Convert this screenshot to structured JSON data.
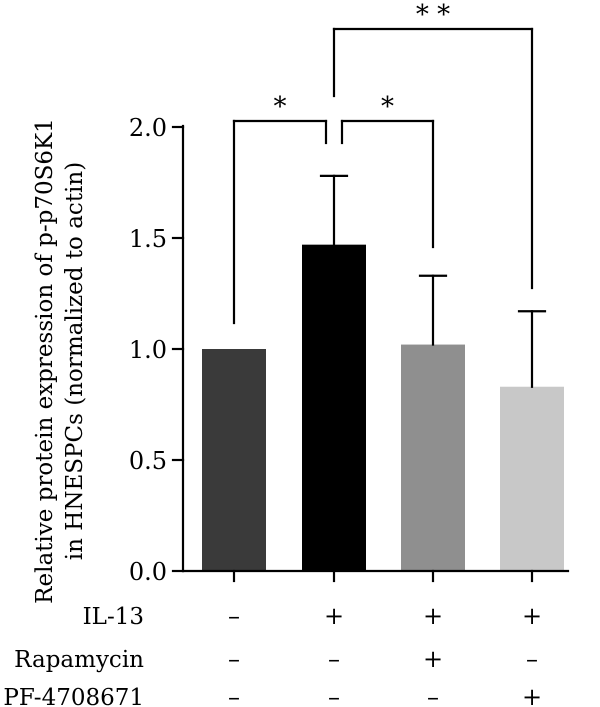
{
  "chart_data": {
    "type": "bar",
    "ylabel_line1": "Relative protein expression of p-p70S6K1",
    "ylabel_line2": "in HNESPCs (normalized to actin)",
    "ylim": [
      0,
      2.0
    ],
    "yticks": [
      "0.0",
      "0.5",
      "1.0",
      "1.5",
      "2.0"
    ],
    "bars": [
      {
        "value": 1.0,
        "error": 0.0,
        "color": "#3a3a3a"
      },
      {
        "value": 1.47,
        "error": 0.31,
        "color": "#000000"
      },
      {
        "value": 1.02,
        "error": 0.31,
        "color": "#8f8f8f"
      },
      {
        "value": 0.83,
        "error": 0.34,
        "color": "#c8c8c8"
      }
    ],
    "treatments": [
      {
        "name": "IL-13",
        "signs": [
          "–",
          "+",
          "+",
          "+"
        ]
      },
      {
        "name": "Rapamycin",
        "signs": [
          "–",
          "–",
          "+",
          "–"
        ]
      },
      {
        "name": "PF-4708671",
        "signs": [
          "–",
          "–",
          "–",
          "+"
        ]
      }
    ],
    "significance": [
      {
        "from": 0,
        "to": 1,
        "label": "*"
      },
      {
        "from": 1,
        "to": 2,
        "label": "*"
      },
      {
        "from": 1,
        "to": 3,
        "label": "* *"
      }
    ],
    "grid": false,
    "legend": false
  }
}
